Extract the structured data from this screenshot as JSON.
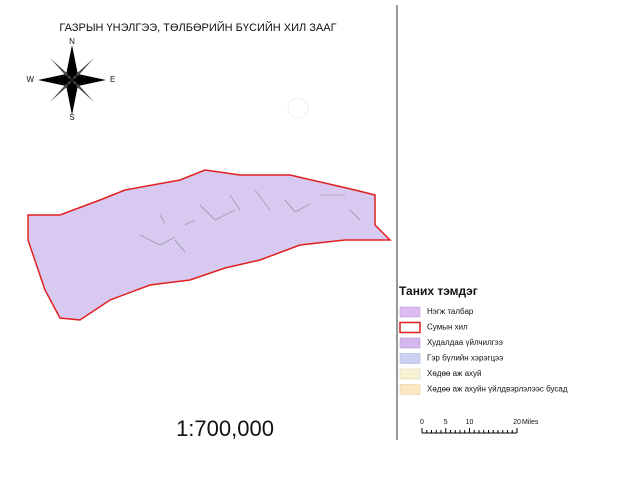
{
  "map": {
    "title": "ГАЗРЫН ҮНЭЛГЭЭ, ТӨЛБӨРИЙН БҮСИЙН ХИЛ ЗААГ",
    "compass": {
      "north": "N",
      "east": "E",
      "south": "S",
      "west": "W"
    },
    "scale": "1:700,000",
    "scale_bar": {
      "ticks": [
        0,
        5,
        10,
        20
      ],
      "unit": "Miles"
    }
  },
  "legend": {
    "title": "Таних тэмдэг",
    "items": [
      "Нэгж талбар",
      "Сумын хил",
      "Худалдаа үйлчилгээ",
      "Гэр бүлийн хэрэгцээ",
      "Хөдөө аж ахуй",
      "Хөдөө аж ахуйн үйлдвэрлэлээс бусад"
    ]
  }
}
